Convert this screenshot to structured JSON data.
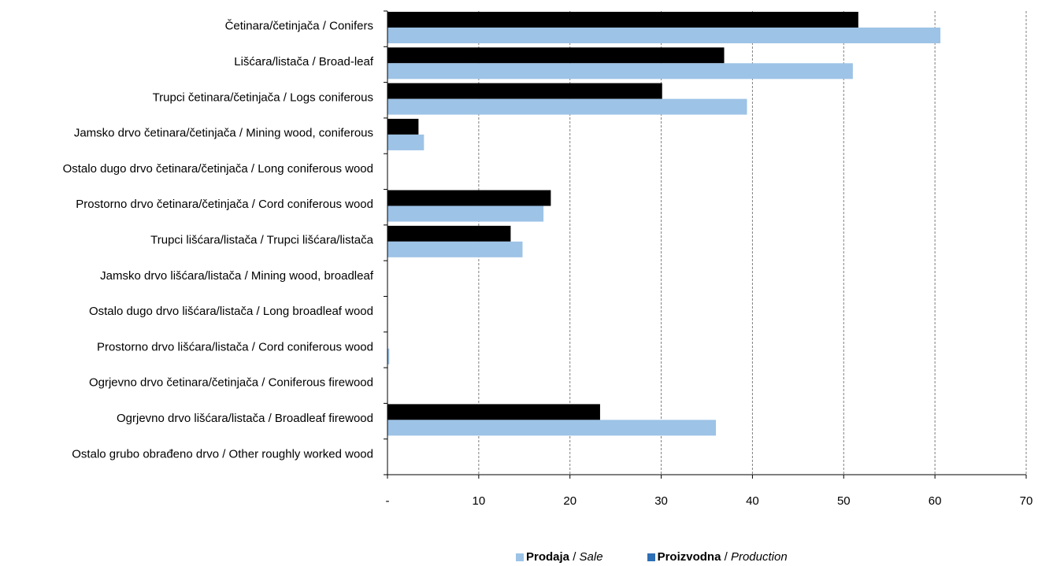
{
  "chart_data": {
    "type": "bar",
    "orientation": "horizontal",
    "categories": [
      "Četinara/četinjača / Conifers",
      "Lišćara/listača / Broad-leaf",
      "Trupci četinara/četinjača / Logs coniferous",
      "Jamsko drvo četinara/četinjača / Mining wood, coniferous",
      "Ostalo dugo drvo četinara/četinjača / Long coniferous wood",
      "Prostorno drvo četinara/četinjača / Cord coniferous wood",
      "Trupci lišćara/listača / Trupci lišćara/listača",
      "Jamsko drvo lišćara/listača / Mining wood, broadleaf",
      "Ostalo dugo drvo lišćara/listača / Long broadleaf wood",
      "Prostorno drvo lišćara/listača / Cord coniferous wood",
      "Ogrjevno drvo četinara/četinjača / Coniferous firewood",
      "Ogrjevno drvo lišćara/listača / Broadleaf firewood",
      "Ostalo grubo obrađeno drvo / Other roughly worked wood"
    ],
    "series": [
      {
        "name": "Proizvodna / Production",
        "name_bold": "Proizvodna",
        "name_italic": "Production",
        "color": "#000000",
        "legend_color": "#2e6fb5",
        "values": [
          51.6,
          36.9,
          30.1,
          3.4,
          0,
          17.9,
          13.5,
          0,
          0,
          0,
          0,
          23.3,
          0
        ]
      },
      {
        "name": "Prodaja / Sale",
        "name_bold": "Prodaja",
        "name_italic": "Sale",
        "color": "#9dc3e6",
        "legend_color": "#9dc3e6",
        "values": [
          60.6,
          51.0,
          39.4,
          4.0,
          0,
          17.1,
          14.8,
          0,
          0,
          0.2,
          0,
          36.0,
          0
        ]
      }
    ],
    "x_ticks": [
      "-",
      "10",
      "20",
      "30",
      "40",
      "50",
      "60",
      "70"
    ],
    "xlim": [
      0,
      70
    ],
    "grid": true,
    "legend_position": "bottom"
  }
}
